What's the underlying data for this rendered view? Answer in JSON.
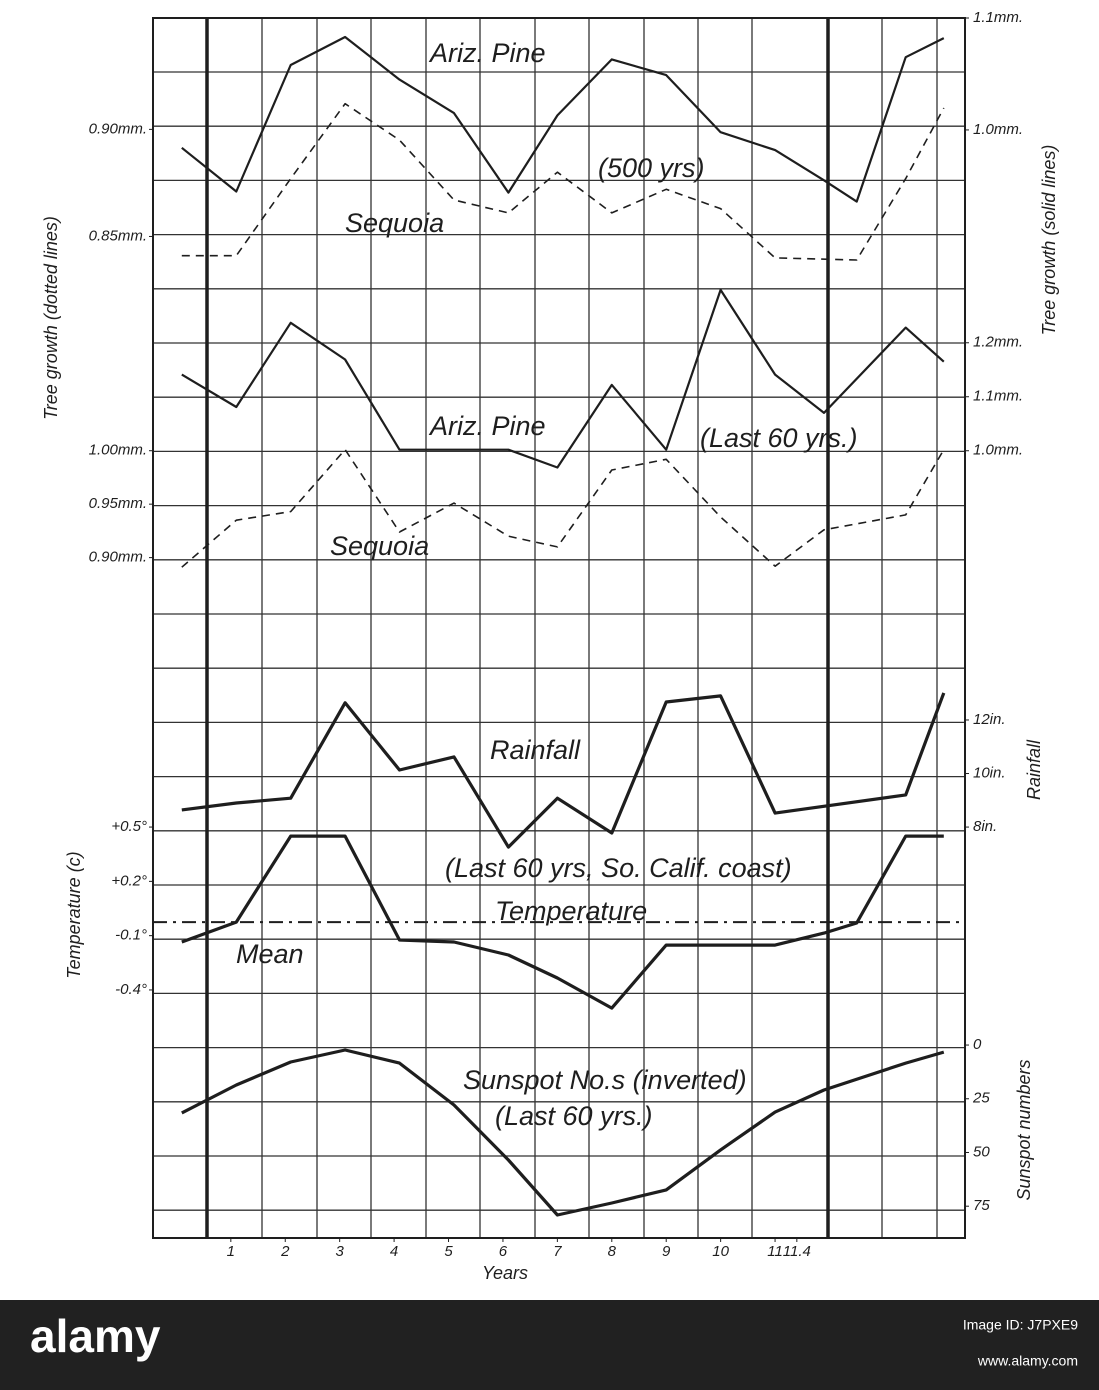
{
  "chart_data": [
    {
      "type": "line",
      "ylabel": "Tree growth (dotted lines)",
      "y2label": "Tree growth (solid lines)",
      "xlim": [
        -0.43,
        14.49
      ],
      "ylim": [
        0.825,
        0.952
      ],
      "yticks": [
        {
          "value": 0.9,
          "label": "0.90mm."
        },
        {
          "value": 0.85,
          "label": "0.85mm."
        }
      ],
      "y2lim": [
        0.857,
        1.1
      ],
      "y2ticks": [
        {
          "value": 1.1,
          "label": "1.1mm."
        },
        {
          "value": 1.0,
          "label": "1.0mm."
        }
      ],
      "annotations": [
        "Ariz. Pine",
        "(500 yrs)",
        "Sequoia"
      ],
      "series": [
        {
          "name": "Ariz. Pine",
          "axis": "y2",
          "color": "#1e1e1e",
          "linestyle": "solid",
          "linewidth": 2.2,
          "x": [
            0.1,
            1.1,
            2.1,
            3.1,
            4.1,
            5.1,
            6.1,
            7.0,
            8.0,
            9.0,
            10.0,
            11.0,
            11.9,
            12.5,
            13.4,
            14.1
          ],
          "values": [
            0.984,
            0.945,
            1.058,
            1.083,
            1.045,
            1.015,
            0.944,
            1.013,
            1.063,
            1.049,
            0.998,
            0.982,
            0.955,
            0.936,
            1.065,
            1.082
          ]
        },
        {
          "name": "Sequoia",
          "color": "#1e1e1e",
          "linestyle": "dashed",
          "linewidth": 1.6,
          "x": [
            0.1,
            1.1,
            2.1,
            3.1,
            4.1,
            5.1,
            6.1,
            7.0,
            8.0,
            9.0,
            10.0,
            11.0,
            12.5,
            13.4,
            14.1
          ],
          "values": [
            0.841,
            0.841,
            0.877,
            0.912,
            0.895,
            0.867,
            0.861,
            0.88,
            0.861,
            0.872,
            0.863,
            0.84,
            0.839,
            0.877,
            0.91
          ]
        }
      ]
    },
    {
      "type": "line",
      "xlim": [
        -0.43,
        14.49
      ],
      "ylim": [
        0.851,
        1.155
      ],
      "yticks": [
        {
          "value": 1.0,
          "label": "1.00mm."
        },
        {
          "value": 0.95,
          "label": "0.95mm."
        },
        {
          "value": 0.9,
          "label": "0.90mm."
        }
      ],
      "y2lim": [
        0.705,
        1.307
      ],
      "y2ticks": [
        {
          "value": 1.2,
          "label": "1.2mm."
        },
        {
          "value": 1.1,
          "label": "1.1mm."
        },
        {
          "value": 1.0,
          "label": "1.0mm."
        }
      ],
      "annotations": [
        "Ariz. Pine",
        "(Last 60 yrs.)",
        "Sequoia"
      ],
      "series": [
        {
          "name": "Ariz. Pine",
          "axis": "y2",
          "color": "#1e1e1e",
          "linestyle": "solid",
          "linewidth": 2.2,
          "x": [
            0.1,
            1.1,
            2.1,
            3.1,
            4.1,
            5.1,
            6.1,
            7.0,
            8.0,
            9.0,
            10.0,
            11.0,
            11.9,
            13.4,
            14.1
          ],
          "values": [
            1.141,
            1.081,
            1.237,
            1.169,
            1.002,
            1.002,
            1.002,
            0.969,
            1.122,
            1.002,
            1.298,
            1.141,
            1.07,
            1.228,
            1.165
          ]
        },
        {
          "name": "Sequoia",
          "color": "#1e1e1e",
          "linestyle": "dashed",
          "linewidth": 1.6,
          "x": [
            0.1,
            1.1,
            2.1,
            3.1,
            4.1,
            5.1,
            6.1,
            7.0,
            8.0,
            9.0,
            10.0,
            11.0,
            11.9,
            13.4,
            14.1
          ],
          "values": [
            0.891,
            0.935,
            0.943,
            1.001,
            0.924,
            0.951,
            0.92,
            0.91,
            0.982,
            0.992,
            0.938,
            0.892,
            0.926,
            0.94,
            1.001
          ]
        }
      ]
    },
    {
      "type": "line",
      "y2label": "Rainfall",
      "xlim": [
        -0.43,
        14.49
      ],
      "y2lim": [
        6.77,
        14.24
      ],
      "y2ticks": [
        {
          "value": 12,
          "label": "12in."
        },
        {
          "value": 10,
          "label": "10in."
        },
        {
          "value": 8,
          "label": "8in."
        }
      ],
      "annotations": [
        "Rainfall"
      ],
      "series": [
        {
          "name": "Rainfall",
          "axis": "y2",
          "color": "#1e1e1e",
          "linestyle": "solid",
          "linewidth": 3.2,
          "x": [
            0.1,
            1.1,
            2.1,
            3.1,
            4.1,
            5.1,
            6.1,
            7.0,
            8.0,
            9.0,
            10.0,
            11.0,
            13.4,
            14.1
          ],
          "values": [
            8.64,
            8.9,
            9.08,
            12.64,
            10.13,
            10.62,
            7.25,
            9.08,
            7.78,
            12.67,
            12.9,
            8.52,
            9.2,
            13.01
          ]
        }
      ]
    },
    {
      "type": "line",
      "ylabel": "Temperature (c)",
      "xlim": [
        -0.43,
        14.49
      ],
      "ylim": [
        -0.566,
        0.539
      ],
      "yticks": [
        {
          "value": 0.5,
          "label": "+0.5°"
        },
        {
          "value": 0.2,
          "label": "+0.2°"
        },
        {
          "value": -0.1,
          "label": "-0.1°"
        },
        {
          "value": -0.4,
          "label": "-0.4°"
        }
      ],
      "mean": -0.025,
      "annotations": [
        "(Last 60 yrs, So. Calif. coast)",
        "Temperature",
        "Mean"
      ],
      "series": [
        {
          "name": "Temperature",
          "color": "#1e1e1e",
          "linestyle": "solid",
          "linewidth": 3.2,
          "x": [
            0.1,
            1.1,
            2.1,
            3.1,
            4.1,
            5.1,
            6.1,
            7.0,
            8.0,
            9.0,
            10.0,
            11.0,
            11.9,
            12.5,
            13.4,
            14.1
          ],
          "values": [
            -0.135,
            -0.025,
            0.45,
            0.45,
            -0.124,
            -0.135,
            -0.207,
            -0.334,
            -0.5,
            -0.152,
            -0.152,
            -0.152,
            -0.086,
            -0.03,
            0.45,
            0.45
          ]
        }
      ]
    },
    {
      "type": "line",
      "y2label": "Sunspot numbers",
      "xlabel": "Years",
      "xlim": [
        -0.43,
        14.49
      ],
      "xticks": [
        1,
        2,
        3,
        4,
        5,
        6,
        7,
        8,
        9,
        10,
        11,
        11.4
      ],
      "y2lim": [
        -7.0,
        89.8
      ],
      "y2_inverted": true,
      "y2ticks": [
        0,
        25,
        50,
        75
      ],
      "annotations": [
        "Sunspot No.s (inverted)",
        "(Last 60 yrs.)"
      ],
      "series": [
        {
          "name": "Sunspot numbers",
          "axis": "y2",
          "color": "#1e1e1e",
          "linestyle": "solid",
          "linewidth": 3.2,
          "x": [
            0.1,
            1.1,
            2.1,
            3.1,
            4.1,
            5.1,
            6.1,
            7.0,
            8.0,
            9.0,
            10.0,
            11.0,
            11.9,
            13.4,
            14.1
          ],
          "values": [
            31.6,
            18.6,
            7.9,
            2.3,
            8.4,
            27.9,
            53.5,
            79.1,
            73.5,
            67.4,
            48.8,
            31.2,
            20.9,
            8.4,
            3.3
          ]
        }
      ]
    }
  ],
  "watermark": {
    "logo": "alamy",
    "image_id": "Image ID: J7PXE9",
    "url": "www.alamy.com"
  }
}
